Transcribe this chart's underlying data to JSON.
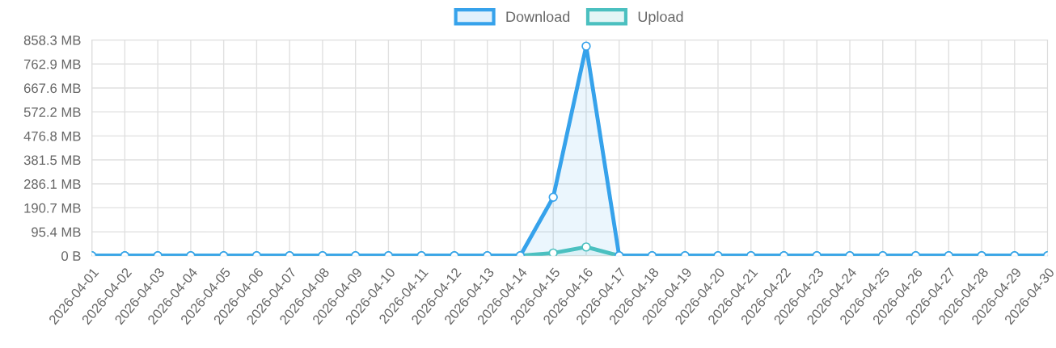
{
  "chart_data": {
    "type": "area",
    "categories": [
      "2026-04-01",
      "2026-04-02",
      "2026-04-03",
      "2026-04-04",
      "2026-04-05",
      "2026-04-06",
      "2026-04-07",
      "2026-04-08",
      "2026-04-09",
      "2026-04-10",
      "2026-04-11",
      "2026-04-12",
      "2026-04-13",
      "2026-04-14",
      "2026-04-15",
      "2026-04-16",
      "2026-04-17",
      "2026-04-18",
      "2026-04-19",
      "2026-04-20",
      "2026-04-21",
      "2026-04-22",
      "2026-04-23",
      "2026-04-24",
      "2026-04-25",
      "2026-04-26",
      "2026-04-27",
      "2026-04-28",
      "2026-04-29",
      "2026-04-30"
    ],
    "series": [
      {
        "name": "Download",
        "color": "#36a2eb",
        "values": [
          0,
          0,
          0,
          0,
          0,
          0,
          0,
          0,
          0,
          0,
          0,
          0,
          0,
          0,
          233,
          834,
          0,
          0,
          0,
          0,
          0,
          0,
          0,
          0,
          0,
          0,
          0,
          0,
          0,
          0
        ]
      },
      {
        "name": "Upload",
        "color": "#4bc0c0",
        "values": [
          0,
          0,
          0,
          0,
          0,
          0,
          0,
          0,
          0,
          0,
          0,
          0,
          0,
          0,
          11,
          35,
          0,
          0,
          0,
          0,
          0,
          0,
          0,
          0,
          0,
          0,
          0,
          0,
          0,
          0
        ]
      }
    ],
    "ylim": [
      0,
      858.3
    ],
    "yticks": [
      {
        "value": 0,
        "label": "0 B"
      },
      {
        "value": 95.4,
        "label": "95.4 MB"
      },
      {
        "value": 190.7,
        "label": "190.7 MB"
      },
      {
        "value": 286.1,
        "label": "286.1 MB"
      },
      {
        "value": 381.5,
        "label": "381.5 MB"
      },
      {
        "value": 476.8,
        "label": "476.8 MB"
      },
      {
        "value": 572.2,
        "label": "572.2 MB"
      },
      {
        "value": 667.6,
        "label": "667.6 MB"
      },
      {
        "value": 762.9,
        "label": "762.9 MB"
      },
      {
        "value": 858.3,
        "label": "858.3 MB"
      }
    ],
    "grid": true,
    "legend": "top",
    "marker": "circle",
    "line_style": "solid"
  }
}
